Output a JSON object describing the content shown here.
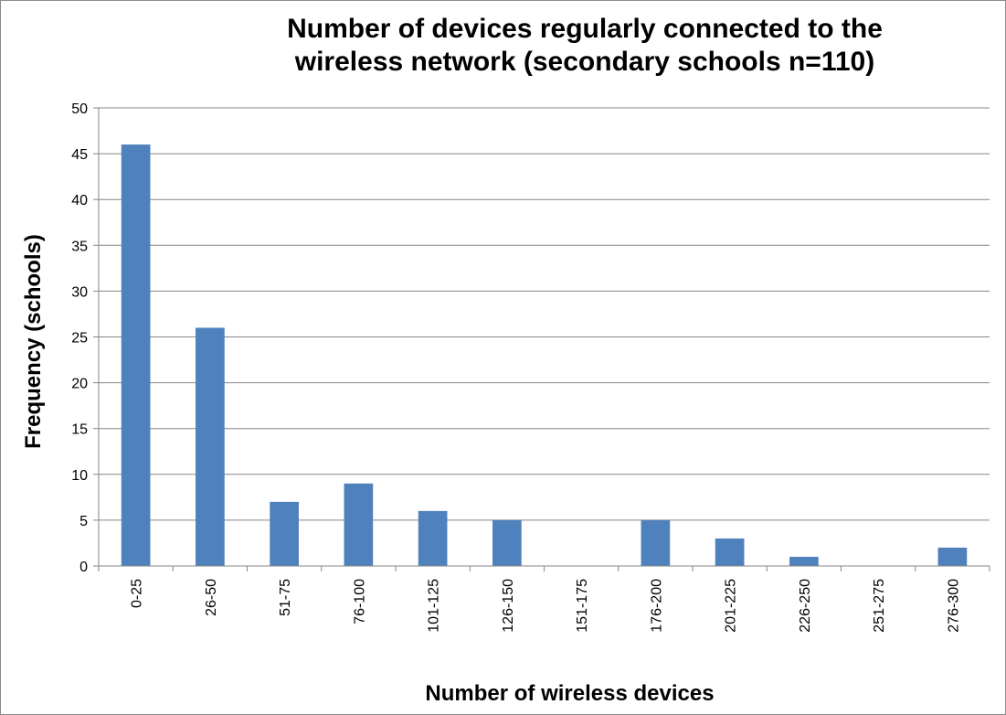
{
  "chart_data": {
    "type": "bar",
    "title": [
      "Number of devices regularly connected to the",
      "wireless network (secondary schools n=110)"
    ],
    "xlabel": "Number of wireless devices",
    "ylabel": "Frequency (schools)",
    "categories": [
      "0-25",
      "26-50",
      "51-75",
      "76-100",
      "101-125",
      "126-150",
      "151-175",
      "176-200",
      "201-225",
      "226-250",
      "251-275",
      "276-300"
    ],
    "values": [
      46,
      26,
      7,
      9,
      6,
      5,
      0,
      5,
      3,
      1,
      0,
      2
    ],
    "ylim": [
      0,
      50
    ],
    "yticks": [
      0,
      5,
      10,
      15,
      20,
      25,
      30,
      35,
      40,
      45,
      50
    ],
    "grid": true,
    "legend": "none",
    "bar_color": "#4f81bd",
    "grid_color": "#868686"
  }
}
